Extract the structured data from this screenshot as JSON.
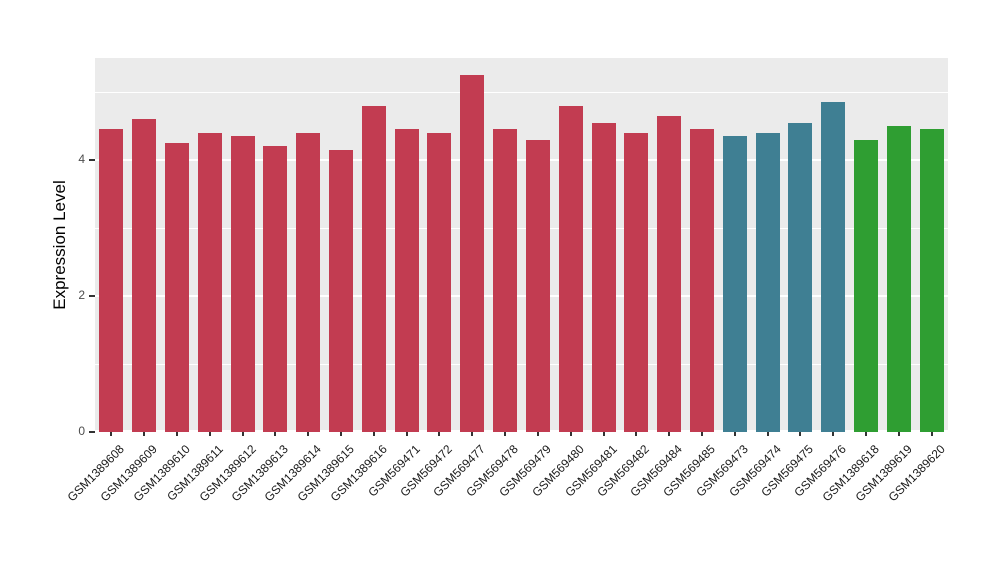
{
  "chart_data": {
    "type": "bar",
    "title": "",
    "xlabel": "",
    "ylabel": "Expression Level",
    "ylim": [
      0,
      5.5
    ],
    "y_major_ticks": [
      0,
      2,
      4
    ],
    "y_minor_ticks": [
      1,
      3,
      5
    ],
    "grid": true,
    "legend": "none",
    "categories": [
      "GSM1389608",
      "GSM1389609",
      "GSM1389610",
      "GSM1389611",
      "GSM1389612",
      "GSM1389613",
      "GSM1389614",
      "GSM1389615",
      "GSM1389616",
      "GSM569471",
      "GSM569472",
      "GSM569477",
      "GSM569478",
      "GSM569479",
      "GSM569480",
      "GSM569481",
      "GSM569482",
      "GSM569484",
      "GSM569485",
      "GSM569473",
      "GSM569474",
      "GSM569475",
      "GSM569476",
      "GSM1389618",
      "GSM1389619",
      "GSM1389620"
    ],
    "values": [
      4.45,
      4.6,
      4.25,
      4.4,
      4.35,
      4.2,
      4.4,
      4.15,
      4.8,
      4.45,
      4.4,
      5.25,
      4.45,
      4.3,
      4.8,
      4.55,
      4.4,
      4.65,
      4.45,
      4.35,
      4.4,
      4.55,
      4.85,
      4.3,
      4.5,
      4.45
    ],
    "bar_groups": [
      "red",
      "red",
      "red",
      "red",
      "red",
      "red",
      "red",
      "red",
      "red",
      "red",
      "red",
      "red",
      "red",
      "red",
      "red",
      "red",
      "red",
      "red",
      "red",
      "teal",
      "teal",
      "teal",
      "teal",
      "green",
      "green",
      "green"
    ],
    "group_colors": {
      "red": "#C23C51",
      "teal": "#3F7F93",
      "green": "#2F9E32"
    }
  }
}
